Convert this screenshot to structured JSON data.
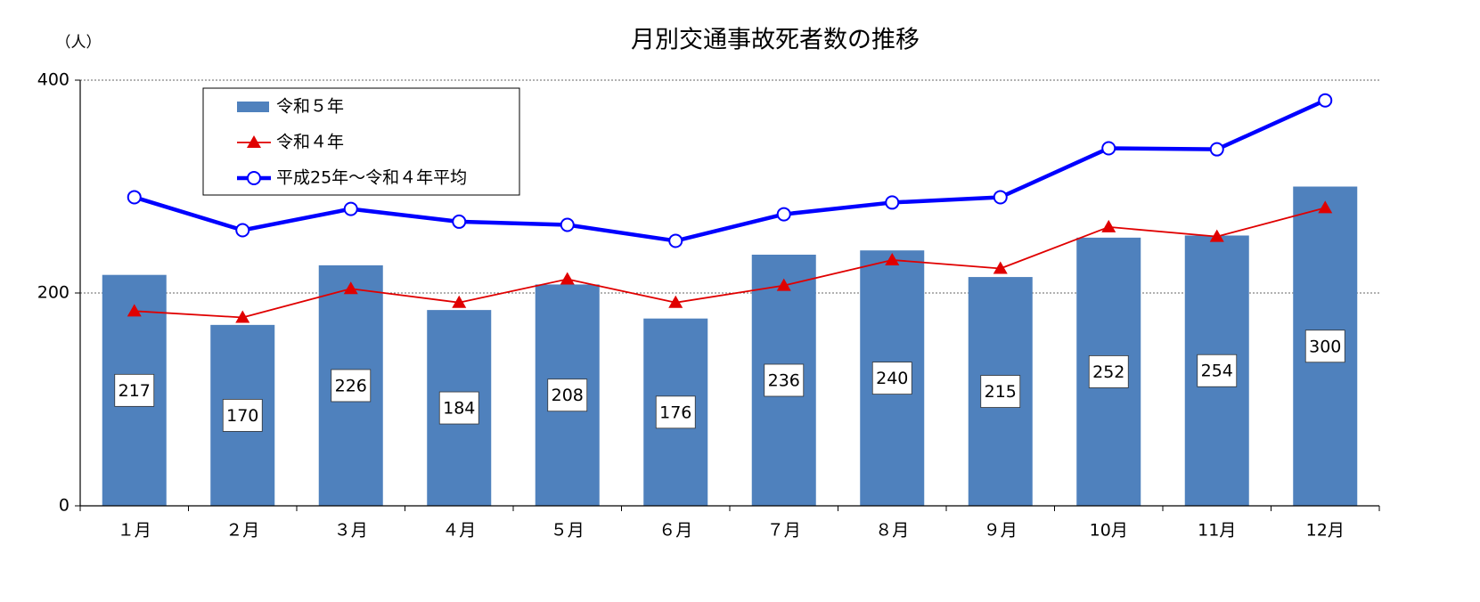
{
  "chart_data": {
    "type": "bar_line",
    "title": "月別交通事故死者数の推移",
    "y_unit": "（人）",
    "categories": [
      "１月",
      "２月",
      "３月",
      "４月",
      "５月",
      "６月",
      "７月",
      "８月",
      "９月",
      "10月",
      "11月",
      "12月"
    ],
    "series": [
      {
        "name": "令和５年",
        "type": "bar",
        "color": "#4f81bd",
        "values": [
          217,
          170,
          226,
          184,
          208,
          176,
          236,
          240,
          215,
          252,
          254,
          300
        ]
      },
      {
        "name": "令和４年",
        "type": "line",
        "marker": "triangle",
        "color": "#e00000",
        "values": [
          183,
          177,
          204,
          191,
          213,
          191,
          207,
          231,
          223,
          262,
          253,
          280
        ]
      },
      {
        "name": "平成25年～令和４年平均",
        "type": "line",
        "marker": "circle",
        "color": "#0000ff",
        "values": [
          290,
          259,
          279,
          267,
          264,
          249,
          274,
          285,
          290,
          336,
          335,
          381
        ]
      }
    ],
    "ylim": [
      0,
      400
    ],
    "yticks": [
      0,
      200,
      400
    ],
    "grid": true,
    "legend": "upper-left"
  }
}
